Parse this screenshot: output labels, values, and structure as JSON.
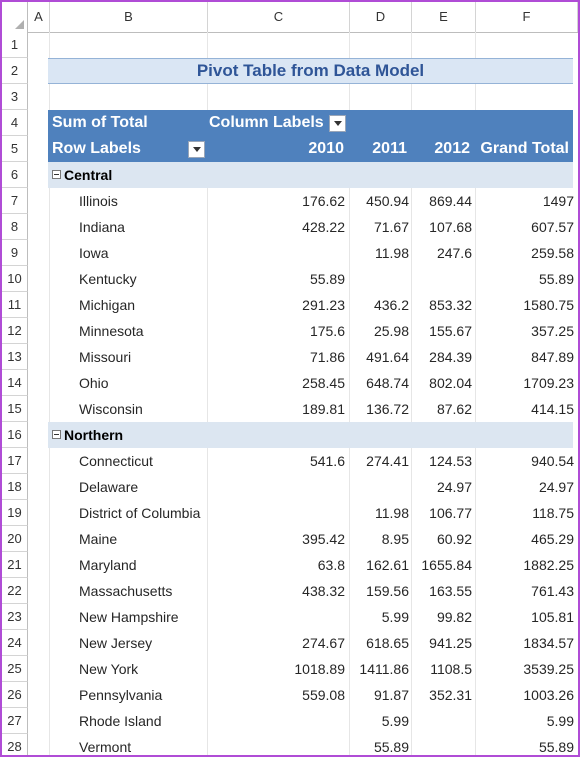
{
  "columns": [
    "A",
    "B",
    "C",
    "D",
    "E",
    "F"
  ],
  "row_numbers": [
    "1",
    "2",
    "3",
    "4",
    "5",
    "6",
    "7",
    "8",
    "9",
    "10",
    "11",
    "12",
    "13",
    "14",
    "15",
    "16",
    "17",
    "18",
    "19",
    "20",
    "21",
    "22",
    "23",
    "24",
    "25",
    "26",
    "27",
    "28"
  ],
  "title": "Pivot Table from Data Model",
  "pivot_header": {
    "values_label": "Sum of Total",
    "column_labels": "Column Labels",
    "row_labels": "Row Labels",
    "years": [
      "2010",
      "2011",
      "2012"
    ],
    "grand_total": "Grand Total"
  },
  "regions": [
    {
      "name": "Central",
      "states": [
        {
          "name": "Illinois",
          "y2010": "176.62",
          "y2011": "450.94",
          "y2012": "869.44",
          "total": "1497"
        },
        {
          "name": "Indiana",
          "y2010": "428.22",
          "y2011": "71.67",
          "y2012": "107.68",
          "total": "607.57"
        },
        {
          "name": "Iowa",
          "y2010": "",
          "y2011": "11.98",
          "y2012": "247.6",
          "total": "259.58"
        },
        {
          "name": "Kentucky",
          "y2010": "55.89",
          "y2011": "",
          "y2012": "",
          "total": "55.89"
        },
        {
          "name": "Michigan",
          "y2010": "291.23",
          "y2011": "436.2",
          "y2012": "853.32",
          "total": "1580.75"
        },
        {
          "name": "Minnesota",
          "y2010": "175.6",
          "y2011": "25.98",
          "y2012": "155.67",
          "total": "357.25"
        },
        {
          "name": "Missouri",
          "y2010": "71.86",
          "y2011": "491.64",
          "y2012": "284.39",
          "total": "847.89"
        },
        {
          "name": "Ohio",
          "y2010": "258.45",
          "y2011": "648.74",
          "y2012": "802.04",
          "total": "1709.23"
        },
        {
          "name": "Wisconsin",
          "y2010": "189.81",
          "y2011": "136.72",
          "y2012": "87.62",
          "total": "414.15"
        }
      ]
    },
    {
      "name": "Northern",
      "states": [
        {
          "name": "Connecticut",
          "y2010": "541.6",
          "y2011": "274.41",
          "y2012": "124.53",
          "total": "940.54"
        },
        {
          "name": "Delaware",
          "y2010": "",
          "y2011": "",
          "y2012": "24.97",
          "total": "24.97"
        },
        {
          "name": "District of Columbia",
          "y2010": "",
          "y2011": "11.98",
          "y2012": "106.77",
          "total": "118.75"
        },
        {
          "name": "Maine",
          "y2010": "395.42",
          "y2011": "8.95",
          "y2012": "60.92",
          "total": "465.29"
        },
        {
          "name": "Maryland",
          "y2010": "63.8",
          "y2011": "162.61",
          "y2012": "1655.84",
          "total": "1882.25"
        },
        {
          "name": "Massachusetts",
          "y2010": "438.32",
          "y2011": "159.56",
          "y2012": "163.55",
          "total": "761.43"
        },
        {
          "name": "New Hampshire",
          "y2010": "",
          "y2011": "5.99",
          "y2012": "99.82",
          "total": "105.81"
        },
        {
          "name": "New Jersey",
          "y2010": "274.67",
          "y2011": "618.65",
          "y2012": "941.25",
          "total": "1834.57"
        },
        {
          "name": "New York",
          "y2010": "1018.89",
          "y2011": "1411.86",
          "y2012": "1108.5",
          "total": "3539.25"
        },
        {
          "name": "Pennsylvania",
          "y2010": "559.08",
          "y2011": "91.87",
          "y2012": "352.31",
          "total": "1003.26"
        },
        {
          "name": "Rhode Island",
          "y2010": "",
          "y2011": "5.99",
          "y2012": "",
          "total": "5.99"
        },
        {
          "name": "Vermont",
          "y2010": "",
          "y2011": "55.89",
          "y2012": "",
          "total": "55.89"
        }
      ]
    }
  ],
  "colors": {
    "header_band": "#4f81bd",
    "region_band": "#dce6f1",
    "title_band": "#dae6f4",
    "title_text": "#2f5597",
    "frame": "#b04cd6"
  }
}
